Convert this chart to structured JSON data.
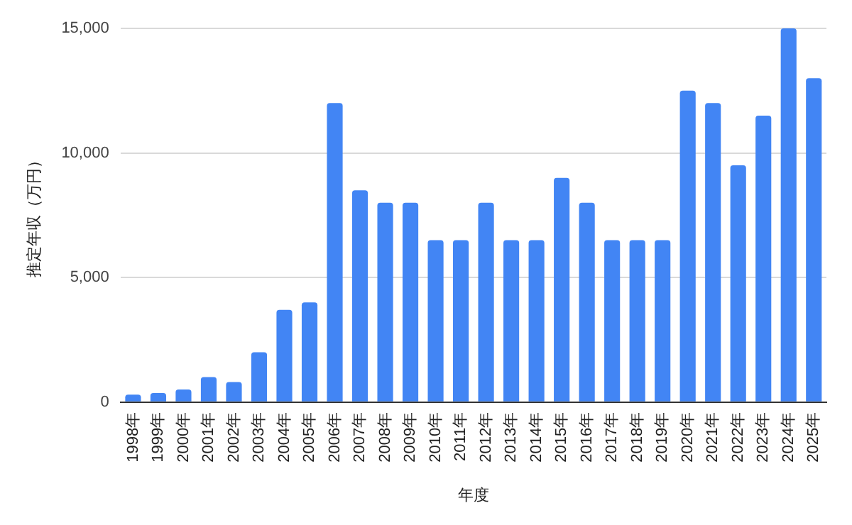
{
  "chart_data": {
    "type": "bar",
    "xlabel": "年度",
    "ylabel": "推定年収（万円）",
    "categories": [
      "1998年",
      "1999年",
      "2000年",
      "2001年",
      "2002年",
      "2003年",
      "2004年",
      "2005年",
      "2006年",
      "2007年",
      "2008年",
      "2009年",
      "2010年",
      "2011年",
      "2012年",
      "2013年",
      "2014年",
      "2015年",
      "2016年",
      "2017年",
      "2018年",
      "2019年",
      "2020年",
      "2021年",
      "2022年",
      "2023年",
      "2024年",
      "2025年"
    ],
    "values": [
      300,
      360,
      500,
      1000,
      800,
      2000,
      3700,
      4000,
      12000,
      8500,
      8000,
      8000,
      6500,
      6500,
      8000,
      6500,
      6500,
      9000,
      8000,
      6500,
      6500,
      6500,
      12500,
      12000,
      9500,
      11500,
      15000,
      13000
    ],
    "color": "#4285f4",
    "ylim": [
      0,
      15000
    ],
    "yticks": [
      {
        "value": 0,
        "label": "0"
      },
      {
        "value": 5000,
        "label": "5,000"
      },
      {
        "value": 10000,
        "label": "10,000"
      },
      {
        "value": 15000,
        "label": "15,000"
      }
    ],
    "grid": "y",
    "legend": false
  }
}
